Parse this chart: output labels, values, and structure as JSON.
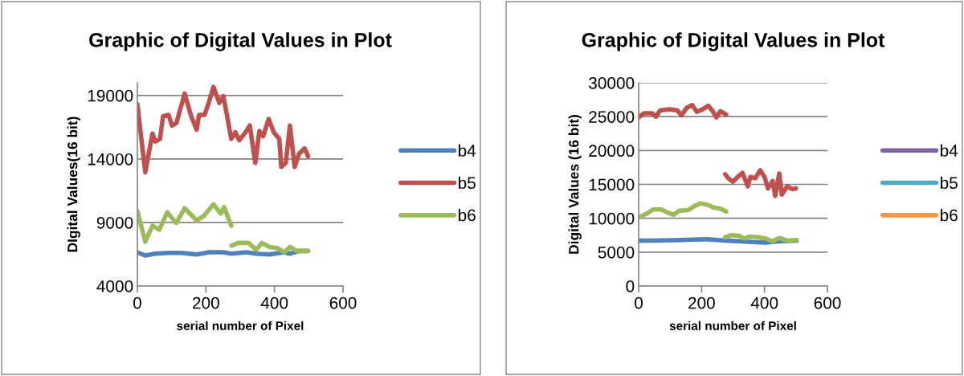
{
  "chart_data": [
    {
      "type": "line",
      "title": "Graphic of Digital Values in Plot",
      "xlabel": "serial number of Pixel",
      "ylabel": "DIgital Values(16 bit)",
      "xlim": [
        0,
        600
      ],
      "xticks": [
        0,
        200,
        400,
        600
      ],
      "ylim": [
        4000,
        20000
      ],
      "yticks": [
        4000,
        9000,
        14000,
        19000
      ],
      "grid": "y",
      "legend": "right",
      "series": [
        {
          "name": "b4",
          "color": "#4f81bd",
          "x": [
            0,
            23,
            52,
            91,
            130,
            173,
            208,
            251,
            274,
            317,
            347,
            386,
            426,
            445,
            472,
            498
          ],
          "values": [
            6650,
            6400,
            6550,
            6610,
            6610,
            6480,
            6650,
            6650,
            6550,
            6650,
            6550,
            6480,
            6650,
            6550,
            6760,
            6760
          ]
        },
        {
          "name": "b5",
          "color": "#c0504d",
          "x": [
            0,
            23,
            44,
            52,
            66,
            75,
            91,
            101,
            114,
            126,
            138,
            157,
            173,
            180,
            196,
            208,
            222,
            239,
            251,
            274,
            286,
            297,
            313,
            328,
            344,
            356,
            367,
            383,
            398,
            414,
            420,
            433,
            445,
            459,
            472,
            488,
            498
          ],
          "values": [
            18300,
            12950,
            16000,
            15370,
            15580,
            17360,
            17470,
            16630,
            16840,
            18000,
            19150,
            17360,
            16310,
            17470,
            17470,
            18410,
            19670,
            18410,
            18940,
            15580,
            16100,
            15470,
            16000,
            16630,
            13690,
            16200,
            15790,
            17150,
            16100,
            15580,
            13370,
            13690,
            16630,
            13370,
            14420,
            14840,
            14210
          ]
        },
        {
          "name": "b6",
          "color": "#9bbb59",
          "x": [
            0,
            23,
            44,
            64,
            87,
            113,
            138,
            173,
            193,
            222,
            243,
            253,
            274
          ],
          "values": [
            9900,
            7490,
            8750,
            8440,
            9800,
            8960,
            10120,
            9170,
            9490,
            10430,
            9700,
            10220,
            8750
          ]
        },
        {
          "color": "#9bbb59",
          "x": [
            275,
            293,
            324,
            347,
            363,
            386,
            410,
            429,
            445,
            465,
            498
          ],
          "values": [
            7180,
            7390,
            7390,
            6860,
            7390,
            7070,
            6970,
            6650,
            7070,
            6760,
            6760
          ]
        }
      ]
    },
    {
      "type": "line",
      "title": "Graphic of Digital Values in Plot",
      "xlabel": "serial number of Pixel",
      "ylabel": "Digital Values (16 bit)",
      "xlim": [
        0,
        600
      ],
      "xticks": [
        0,
        200,
        400,
        600
      ],
      "ylim": [
        0,
        30000
      ],
      "yticks": [
        0,
        5000,
        10000,
        15000,
        20000,
        25000,
        30000
      ],
      "grid": "y",
      "legend": "right",
      "series": [
        {
          "color": "#4f81bd",
          "x": [
            0,
            47,
            132,
            217,
            277,
            319,
            362,
            404,
            447,
            502
          ],
          "values": [
            6700,
            6700,
            6800,
            6900,
            6700,
            6600,
            6500,
            6400,
            6600,
            6700
          ]
        },
        {
          "color": "#c0504d",
          "x": [
            0,
            17,
            43,
            55,
            68,
            98,
            123,
            136,
            153,
            170,
            185,
            204,
            221,
            234,
            247,
            260,
            278
          ],
          "values": [
            24900,
            25500,
            25500,
            25000,
            25900,
            26100,
            25900,
            25200,
            26300,
            26700,
            25700,
            26100,
            26600,
            25900,
            24900,
            25800,
            25300
          ]
        },
        {
          "color": "#c0504d",
          "x": [
            275,
            285,
            300,
            315,
            330,
            347,
            355,
            371,
            386,
            400,
            411,
            426,
            434,
            447,
            455,
            472,
            489,
            500
          ],
          "values": [
            16500,
            15900,
            15400,
            16100,
            16700,
            14700,
            16100,
            15900,
            17100,
            16100,
            14400,
            15500,
            13300,
            16600,
            13500,
            14700,
            14300,
            14400
          ]
        },
        {
          "color": "#9bbb59",
          "x": [
            0,
            26,
            47,
            72,
            89,
            111,
            128,
            157,
            174,
            196,
            217,
            238,
            260,
            278
          ],
          "values": [
            10100,
            10700,
            11300,
            11300,
            10900,
            10500,
            11100,
            11200,
            11700,
            12200,
            12000,
            11600,
            11400,
            11000
          ]
        },
        {
          "color": "#9bbb59",
          "x": [
            275,
            294,
            319,
            336,
            353,
            379,
            404,
            426,
            447,
            472,
            502
          ],
          "values": [
            7200,
            7500,
            7400,
            7000,
            7300,
            7200,
            7000,
            6600,
            7100,
            6700,
            6800
          ]
        },
        {
          "name": "b4",
          "color": "#8064a2"
        },
        {
          "name": "b5",
          "color": "#4bacc6"
        },
        {
          "name": "b6",
          "color": "#f79646"
        }
      ]
    }
  ]
}
